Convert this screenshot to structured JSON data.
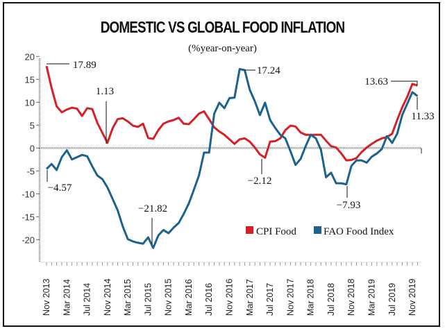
{
  "chart_data": {
    "type": "line",
    "title": "DOMESTIC VS GLOBAL FOOD INFLATION",
    "subtitle": "(%year-on-year)",
    "xlabel": "",
    "ylabel": "",
    "ylim": [
      -25,
      20
    ],
    "yticks": [
      "20",
      "15",
      "10",
      "5",
      "0",
      "-5",
      "-10",
      "-15",
      "-20"
    ],
    "ytick_values": [
      20,
      15,
      10,
      5,
      0,
      -5,
      -10,
      -15,
      -20
    ],
    "xtick_labels": [
      "Nov 2013",
      "Mar 2014",
      "Jul 2014",
      "Nov 2014",
      "Mar 2015",
      "Jul 2015",
      "Nov 2015",
      "Mar 2016",
      "Jul 2016",
      "Nov 2016",
      "Mar 2017",
      "Jul 2017",
      "Nov 2017",
      "Mar 2018",
      "Jul 2018",
      "Nov 2018",
      "Mar 2019",
      "Jul 2019",
      "Nov 2019"
    ],
    "x_start": "Nov 2013",
    "x_end": "Dec 2019",
    "x_frequency": "monthly",
    "grid": false,
    "zero_line": true,
    "legend_position": "bottom-right",
    "series": [
      {
        "name": "CPI Food",
        "color": "#d71f26",
        "values": [
          17.89,
          13.1,
          9.1,
          7.8,
          8.4,
          8.8,
          8.6,
          7.0,
          8.7,
          8.5,
          5.5,
          3.3,
          1.13,
          4.3,
          6.3,
          6.5,
          5.8,
          4.9,
          4.6,
          5.3,
          2.2,
          2.0,
          3.9,
          5.3,
          5.8,
          6.1,
          6.6,
          5.3,
          5.2,
          6.3,
          7.5,
          8.0,
          6.3,
          4.5,
          3.6,
          2.9,
          1.9,
          0.9,
          1.9,
          2.1,
          1.4,
          0.1,
          -1.4,
          -2.12,
          1.4,
          1.5,
          2.1,
          3.9,
          4.9,
          4.7,
          3.4,
          2.9,
          2.9,
          2.9,
          2.9,
          1.6,
          0.4,
          0.1,
          -1.2,
          -2.7,
          -2.6,
          -2.2,
          -0.9,
          0.1,
          0.9,
          1.6,
          2.1,
          2.4,
          3.1,
          6.1,
          8.9,
          11.2,
          14.0,
          13.63
        ]
      },
      {
        "name": "FAO Food Index",
        "color": "#1b628e",
        "values": [
          -4.57,
          -3.5,
          -4.8,
          -2.0,
          -0.5,
          -2.5,
          -2.0,
          -1.5,
          -1.8,
          -4.0,
          -6.0,
          -6.8,
          -8.6,
          -11.1,
          -13.6,
          -17.1,
          -19.9,
          -20.4,
          -20.7,
          -20.9,
          -19.5,
          -21.82,
          -19.1,
          -17.9,
          -18.6,
          -17.4,
          -16.4,
          -14.4,
          -12.1,
          -9.1,
          -6.0,
          -1.0,
          -1.0,
          7.5,
          9.9,
          8.7,
          10.9,
          11.0,
          17.24,
          17.0,
          12.7,
          10.2,
          7.2,
          9.9,
          6.1,
          4.4,
          2.9,
          2.1,
          -0.7,
          -3.7,
          -2.4,
          0.4,
          2.9,
          2.1,
          -0.4,
          -6.4,
          -5.4,
          -7.7,
          -7.7,
          -7.93,
          -3.9,
          -2.7,
          -2.7,
          -3.2,
          -1.9,
          -1.2,
          -0.2,
          2.6,
          1.1,
          3.1,
          7.2,
          9.7,
          12.2,
          11.33
        ]
      }
    ],
    "annotations": [
      {
        "text": "17.89",
        "series": 0,
        "month": "Nov 2013"
      },
      {
        "text": "1.13",
        "series": 0,
        "month": "Nov 2014"
      },
      {
        "text": "−4.57",
        "series": 1,
        "month": "Nov 2013"
      },
      {
        "text": "−21.82",
        "series": 1,
        "month": "Aug 2015"
      },
      {
        "text": "17.24",
        "series": 1,
        "month": "Jan 2017"
      },
      {
        "text": "−2.12",
        "series": 0,
        "month": "Jun 2017"
      },
      {
        "text": "−7.93",
        "series": 1,
        "month": "Oct 2018"
      },
      {
        "text": "13.63",
        "series": 0,
        "month": "Dec 2019"
      },
      {
        "text": "11.33",
        "series": 1,
        "month": "Dec 2019"
      }
    ]
  }
}
